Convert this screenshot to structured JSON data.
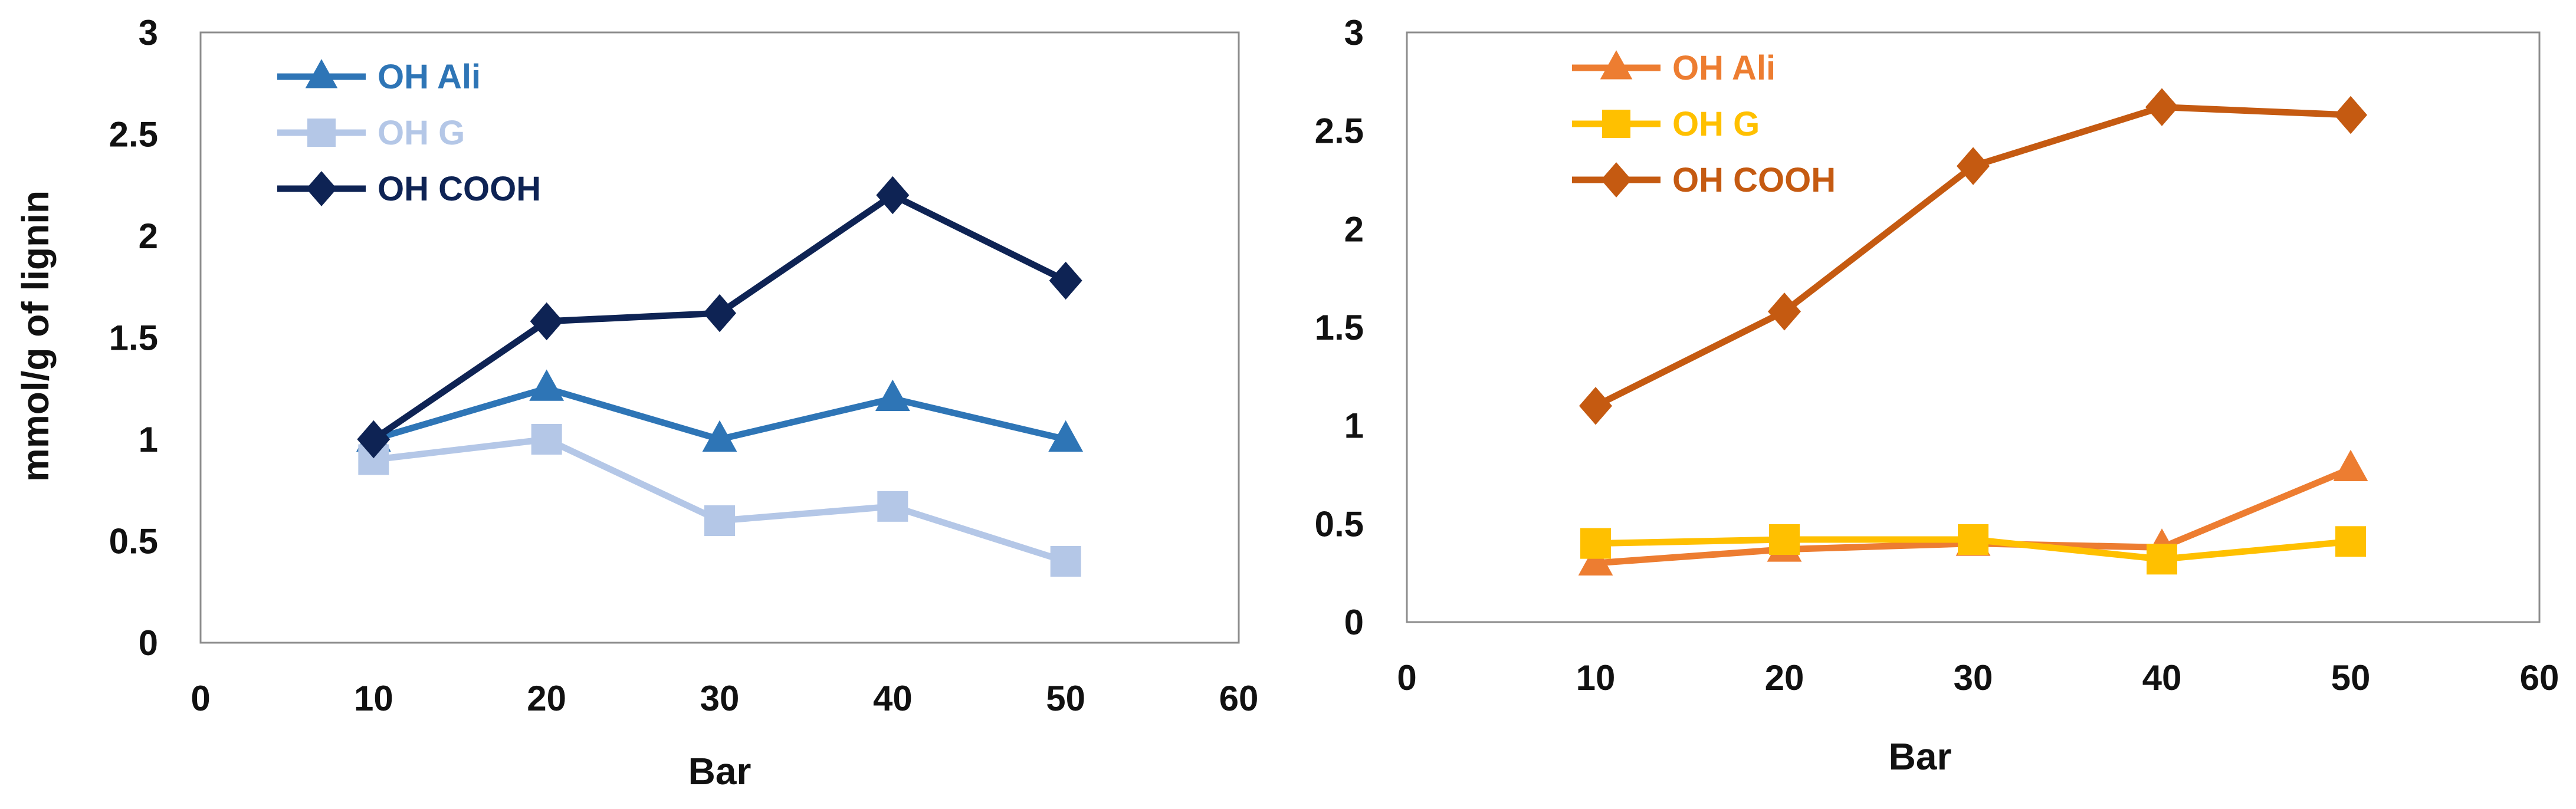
{
  "chart_data": [
    {
      "type": "line",
      "title": "",
      "xlabel": "Bar",
      "ylabel": "mmol/g of lignin",
      "xlim": [
        0,
        60
      ],
      "ylim": [
        0,
        3
      ],
      "xticks": [
        0,
        10,
        20,
        30,
        40,
        50,
        60
      ],
      "yticks": [
        0,
        0.5,
        1,
        1.5,
        2,
        2.5,
        3
      ],
      "xtick_labels": [
        "0",
        "10",
        "20",
        "30",
        "40",
        "50",
        "60"
      ],
      "ytick_labels": [
        "0",
        "0.5",
        "1",
        "1.5",
        "2",
        "2.5",
        "3"
      ],
      "grid": false,
      "legend_position": "top-left",
      "x": [
        10,
        20,
        30,
        40,
        50
      ],
      "series": [
        {
          "name": "OH Ali",
          "marker": "triangle",
          "color": "#2E75B6",
          "values": [
            1.0,
            1.25,
            1.0,
            1.2,
            1.0
          ]
        },
        {
          "name": "OH G",
          "marker": "square",
          "color": "#B4C7E7",
          "values": [
            0.9,
            1.0,
            0.6,
            0.67,
            0.4
          ]
        },
        {
          "name": "OH COOH",
          "marker": "diamond",
          "color": "#0E2354",
          "values": [
            1.0,
            1.58,
            1.62,
            2.2,
            1.78
          ]
        }
      ]
    },
    {
      "type": "line",
      "title": "",
      "xlabel": "Bar",
      "ylabel": "",
      "xlim": [
        0,
        60
      ],
      "ylim": [
        0,
        3
      ],
      "xticks": [
        0,
        10,
        20,
        30,
        40,
        50,
        60
      ],
      "yticks": [
        0,
        0.5,
        1,
        1.5,
        2,
        2.5,
        3
      ],
      "xtick_labels": [
        "0",
        "10",
        "20",
        "30",
        "40",
        "50",
        "60"
      ],
      "ytick_labels": [
        "0",
        "0.5",
        "1",
        "1.5",
        "2",
        "2.5",
        "3"
      ],
      "grid": false,
      "legend_position": "top-left",
      "x": [
        10,
        20,
        30,
        40,
        50
      ],
      "series": [
        {
          "name": "OH Ali",
          "marker": "triangle",
          "color": "#ED7D31",
          "values": [
            0.3,
            0.37,
            0.4,
            0.38,
            0.78
          ]
        },
        {
          "name": "OH G",
          "marker": "square",
          "color": "#FFC000",
          "values": [
            0.4,
            0.42,
            0.42,
            0.32,
            0.41
          ]
        },
        {
          "name": "OH COOH",
          "marker": "diamond",
          "color": "#C55A11",
          "values": [
            1.1,
            1.58,
            2.32,
            2.62,
            2.58
          ]
        }
      ]
    }
  ]
}
